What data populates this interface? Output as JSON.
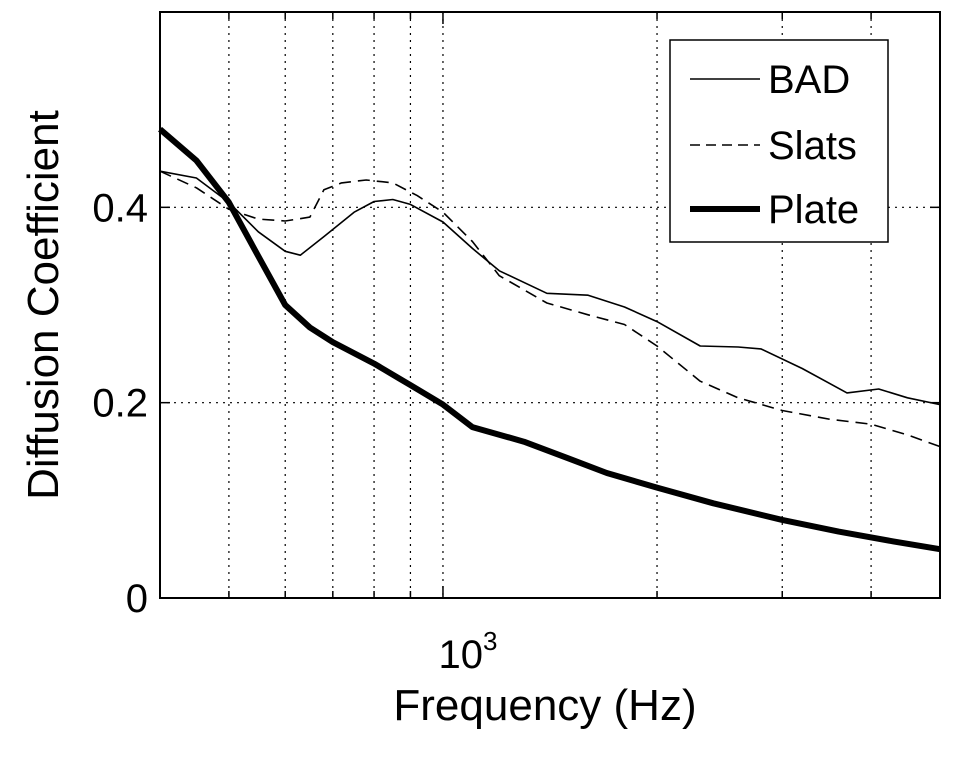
{
  "chart_data": {
    "type": "line",
    "xscale": "log",
    "xlim": [
      400,
      5000
    ],
    "ylim": [
      0,
      0.6
    ],
    "xlabel": "Frequency (Hz)",
    "ylabel": "Diffusion Coefficient",
    "x_tick_label": {
      "base": "10",
      "exponent": "3",
      "value": 1000
    },
    "y_ticks": [
      {
        "value": 0,
        "label": "0"
      },
      {
        "value": 0.2,
        "label": "0.2"
      },
      {
        "value": 0.4,
        "label": "0.4"
      }
    ],
    "x_gridlines": [
      500,
      600,
      700,
      800,
      900,
      1000,
      2000,
      3000,
      4000
    ],
    "y_gridlines": [
      0.2,
      0.4
    ],
    "grid": "dotted",
    "legend_position": "top-right",
    "series": [
      {
        "name": "BAD",
        "style": "thin-solid",
        "points": [
          [
            400,
            0.437
          ],
          [
            450,
            0.43
          ],
          [
            500,
            0.405
          ],
          [
            550,
            0.375
          ],
          [
            600,
            0.355
          ],
          [
            630,
            0.351
          ],
          [
            680,
            0.37
          ],
          [
            750,
            0.395
          ],
          [
            800,
            0.406
          ],
          [
            850,
            0.408
          ],
          [
            900,
            0.403
          ],
          [
            1000,
            0.385
          ],
          [
            1100,
            0.358
          ],
          [
            1200,
            0.335
          ],
          [
            1400,
            0.312
          ],
          [
            1600,
            0.31
          ],
          [
            1800,
            0.298
          ],
          [
            2000,
            0.283
          ],
          [
            2300,
            0.258
          ],
          [
            2600,
            0.257
          ],
          [
            2800,
            0.255
          ],
          [
            3200,
            0.235
          ],
          [
            3700,
            0.21
          ],
          [
            4100,
            0.214
          ],
          [
            4500,
            0.205
          ],
          [
            5000,
            0.198
          ]
        ]
      },
      {
        "name": "Slats",
        "style": "thin-dashed",
        "points": [
          [
            400,
            0.437
          ],
          [
            450,
            0.42
          ],
          [
            500,
            0.398
          ],
          [
            550,
            0.388
          ],
          [
            600,
            0.386
          ],
          [
            650,
            0.39
          ],
          [
            680,
            0.418
          ],
          [
            720,
            0.425
          ],
          [
            780,
            0.428
          ],
          [
            850,
            0.425
          ],
          [
            920,
            0.412
          ],
          [
            1000,
            0.395
          ],
          [
            1100,
            0.365
          ],
          [
            1200,
            0.33
          ],
          [
            1400,
            0.302
          ],
          [
            1600,
            0.29
          ],
          [
            1800,
            0.28
          ],
          [
            2000,
            0.258
          ],
          [
            2300,
            0.222
          ],
          [
            2600,
            0.205
          ],
          [
            3000,
            0.192
          ],
          [
            3500,
            0.183
          ],
          [
            4000,
            0.178
          ],
          [
            4500,
            0.167
          ],
          [
            5000,
            0.155
          ]
        ]
      },
      {
        "name": "Plate",
        "style": "thick-solid",
        "points": [
          [
            400,
            0.48
          ],
          [
            450,
            0.448
          ],
          [
            500,
            0.405
          ],
          [
            550,
            0.35
          ],
          [
            600,
            0.3
          ],
          [
            650,
            0.277
          ],
          [
            700,
            0.262
          ],
          [
            800,
            0.24
          ],
          [
            900,
            0.218
          ],
          [
            1000,
            0.198
          ],
          [
            1100,
            0.175
          ],
          [
            1300,
            0.16
          ],
          [
            1500,
            0.143
          ],
          [
            1700,
            0.128
          ],
          [
            2000,
            0.113
          ],
          [
            2400,
            0.097
          ],
          [
            3000,
            0.08
          ],
          [
            3600,
            0.068
          ],
          [
            4300,
            0.058
          ],
          [
            5000,
            0.05
          ]
        ]
      }
    ]
  }
}
